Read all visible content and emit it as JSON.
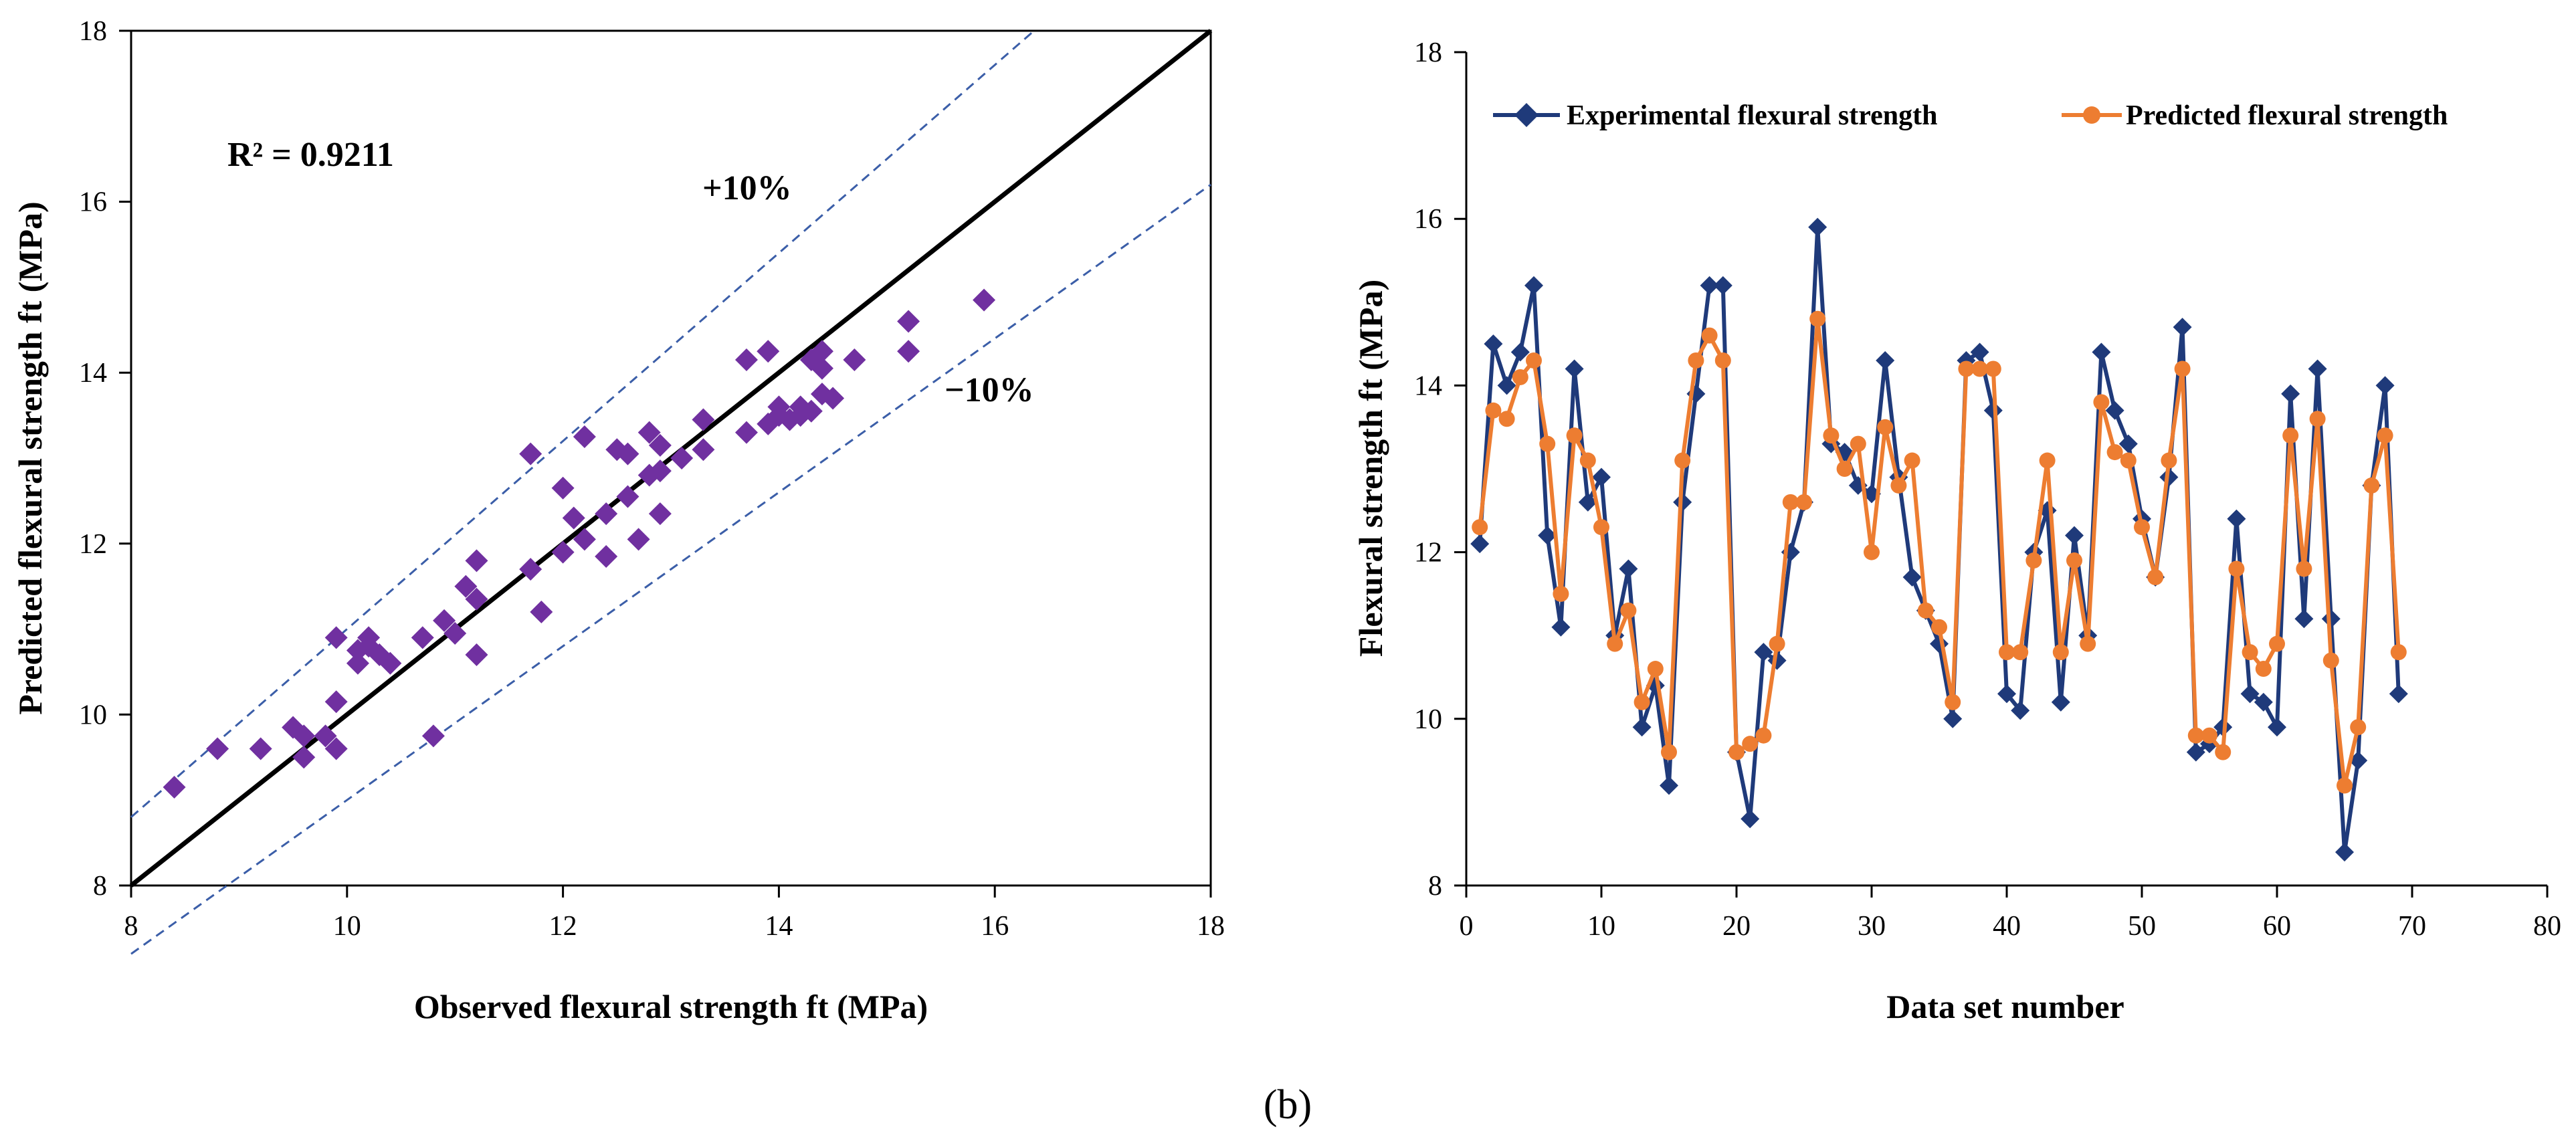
{
  "caption": "(b)",
  "chart_data": [
    {
      "id": "left",
      "type": "scatter",
      "xlabel": "Observed flexural strength ft (MPa)",
      "ylabel": "Predicted flexural strength ft (MPa)",
      "xlim": [
        8,
        18
      ],
      "ylim": [
        8,
        18
      ],
      "xticks": [
        8,
        10,
        12,
        14,
        16,
        18
      ],
      "yticks": [
        8,
        10,
        12,
        14,
        16,
        18
      ],
      "r2_label": "R² = 0.9211",
      "upper_band_label": "+10%",
      "lower_band_label": "−10%",
      "colors": {
        "points": "#7030a0",
        "ideal": "#000000",
        "bands": "#3b5ea8"
      },
      "points": [
        [
          8.4,
          9.15
        ],
        [
          8.8,
          9.6
        ],
        [
          9.2,
          9.6
        ],
        [
          9.5,
          9.85
        ],
        [
          9.6,
          9.75
        ],
        [
          9.6,
          9.5
        ],
        [
          9.8,
          9.75
        ],
        [
          9.9,
          10.9
        ],
        [
          9.9,
          10.15
        ],
        [
          9.9,
          9.6
        ],
        [
          10.1,
          10.6
        ],
        [
          10.1,
          10.75
        ],
        [
          10.2,
          10.8
        ],
        [
          10.2,
          10.9
        ],
        [
          10.3,
          10.7
        ],
        [
          10.4,
          10.6
        ],
        [
          10.7,
          10.9
        ],
        [
          10.8,
          9.75
        ],
        [
          10.9,
          11.1
        ],
        [
          11.0,
          10.95
        ],
        [
          11.1,
          11.5
        ],
        [
          11.2,
          11.8
        ],
        [
          11.2,
          11.35
        ],
        [
          11.2,
          10.7
        ],
        [
          11.7,
          11.7
        ],
        [
          11.7,
          13.05
        ],
        [
          11.8,
          11.2
        ],
        [
          12.0,
          11.9
        ],
        [
          12.0,
          12.65
        ],
        [
          12.1,
          12.3
        ],
        [
          12.2,
          12.05
        ],
        [
          12.2,
          13.25
        ],
        [
          12.4,
          11.85
        ],
        [
          12.4,
          12.35
        ],
        [
          12.5,
          13.1
        ],
        [
          12.6,
          12.55
        ],
        [
          12.6,
          13.05
        ],
        [
          12.7,
          12.05
        ],
        [
          12.8,
          12.8
        ],
        [
          12.8,
          13.3
        ],
        [
          12.9,
          13.15
        ],
        [
          12.9,
          12.35
        ],
        [
          12.9,
          12.85
        ],
        [
          13.1,
          13.0
        ],
        [
          13.3,
          13.1
        ],
        [
          13.3,
          13.45
        ],
        [
          13.7,
          13.3
        ],
        [
          13.7,
          14.15
        ],
        [
          13.9,
          14.25
        ],
        [
          13.9,
          13.4
        ],
        [
          14.0,
          13.5
        ],
        [
          14.0,
          13.6
        ],
        [
          14.1,
          13.45
        ],
        [
          14.2,
          13.6
        ],
        [
          14.2,
          13.5
        ],
        [
          14.3,
          13.55
        ],
        [
          14.3,
          14.15
        ],
        [
          14.4,
          14.25
        ],
        [
          14.4,
          13.75
        ],
        [
          14.4,
          14.05
        ],
        [
          14.5,
          13.7
        ],
        [
          14.7,
          14.15
        ],
        [
          15.2,
          14.25
        ],
        [
          15.2,
          14.6
        ],
        [
          15.9,
          14.85
        ]
      ]
    },
    {
      "id": "right",
      "type": "line",
      "xlabel": "Data set number",
      "ylabel": "Flexural strength ft (MPa)",
      "xlim": [
        0,
        80
      ],
      "ylim": [
        8,
        18
      ],
      "xticks": [
        0,
        10,
        20,
        30,
        40,
        50,
        60,
        70,
        80
      ],
      "yticks": [
        8,
        10,
        12,
        14,
        16,
        18
      ],
      "x": [
        1,
        2,
        3,
        4,
        5,
        6,
        7,
        8,
        9,
        10,
        11,
        12,
        13,
        14,
        15,
        16,
        17,
        18,
        19,
        20,
        21,
        22,
        23,
        24,
        25,
        26,
        27,
        28,
        29,
        30,
        31,
        32,
        33,
        34,
        35,
        36,
        37,
        38,
        39,
        40,
        41,
        42,
        43,
        44,
        45,
        46,
        47,
        48,
        49,
        50,
        51,
        52,
        53,
        54,
        55,
        56,
        57,
        58,
        59,
        60,
        61,
        62,
        63,
        64,
        65,
        66,
        67,
        68,
        69
      ],
      "series": [
        {
          "name": "Experimental flexural strength",
          "color": "#1f3a7a",
          "marker": "diamond",
          "values": [
            12.1,
            14.5,
            14.0,
            14.4,
            15.2,
            12.2,
            11.1,
            14.2,
            12.6,
            12.9,
            11.0,
            11.8,
            9.9,
            10.4,
            9.2,
            12.6,
            13.9,
            15.2,
            15.2,
            9.6,
            8.8,
            10.8,
            10.7,
            12.0,
            12.6,
            15.9,
            13.3,
            13.2,
            12.8,
            12.7,
            14.3,
            12.9,
            11.7,
            11.3,
            10.9,
            10.0,
            14.3,
            14.4,
            13.7,
            10.3,
            10.1,
            12.0,
            12.5,
            10.2,
            12.2,
            11.0,
            14.4,
            13.7,
            13.3,
            12.4,
            11.7,
            12.9,
            14.7,
            9.6,
            9.7,
            9.9,
            12.4,
            10.3,
            10.2,
            9.9,
            13.9,
            11.2,
            14.2,
            11.2,
            8.4,
            9.5,
            12.8,
            14.0,
            10.3
          ]
        },
        {
          "name": "Predicted flexural strength",
          "color": "#ed7d31",
          "marker": "circle",
          "values": [
            12.3,
            13.7,
            13.6,
            14.1,
            14.3,
            13.3,
            11.5,
            13.4,
            13.1,
            12.3,
            10.9,
            11.3,
            10.2,
            10.6,
            9.6,
            13.1,
            14.3,
            14.6,
            14.3,
            9.6,
            9.7,
            9.8,
            10.9,
            12.6,
            12.6,
            14.8,
            13.4,
            13.0,
            13.3,
            12.0,
            13.5,
            12.8,
            13.1,
            11.3,
            11.1,
            10.2,
            14.2,
            14.2,
            14.2,
            10.8,
            10.8,
            11.9,
            13.1,
            10.8,
            11.9,
            10.9,
            13.8,
            13.2,
            13.1,
            12.3,
            11.7,
            13.1,
            14.2,
            9.8,
            9.8,
            9.6,
            11.8,
            10.8,
            10.6,
            10.9,
            13.4,
            11.8,
            13.6,
            10.7,
            9.2,
            9.9,
            12.8,
            13.4,
            10.8
          ]
        }
      ]
    }
  ]
}
